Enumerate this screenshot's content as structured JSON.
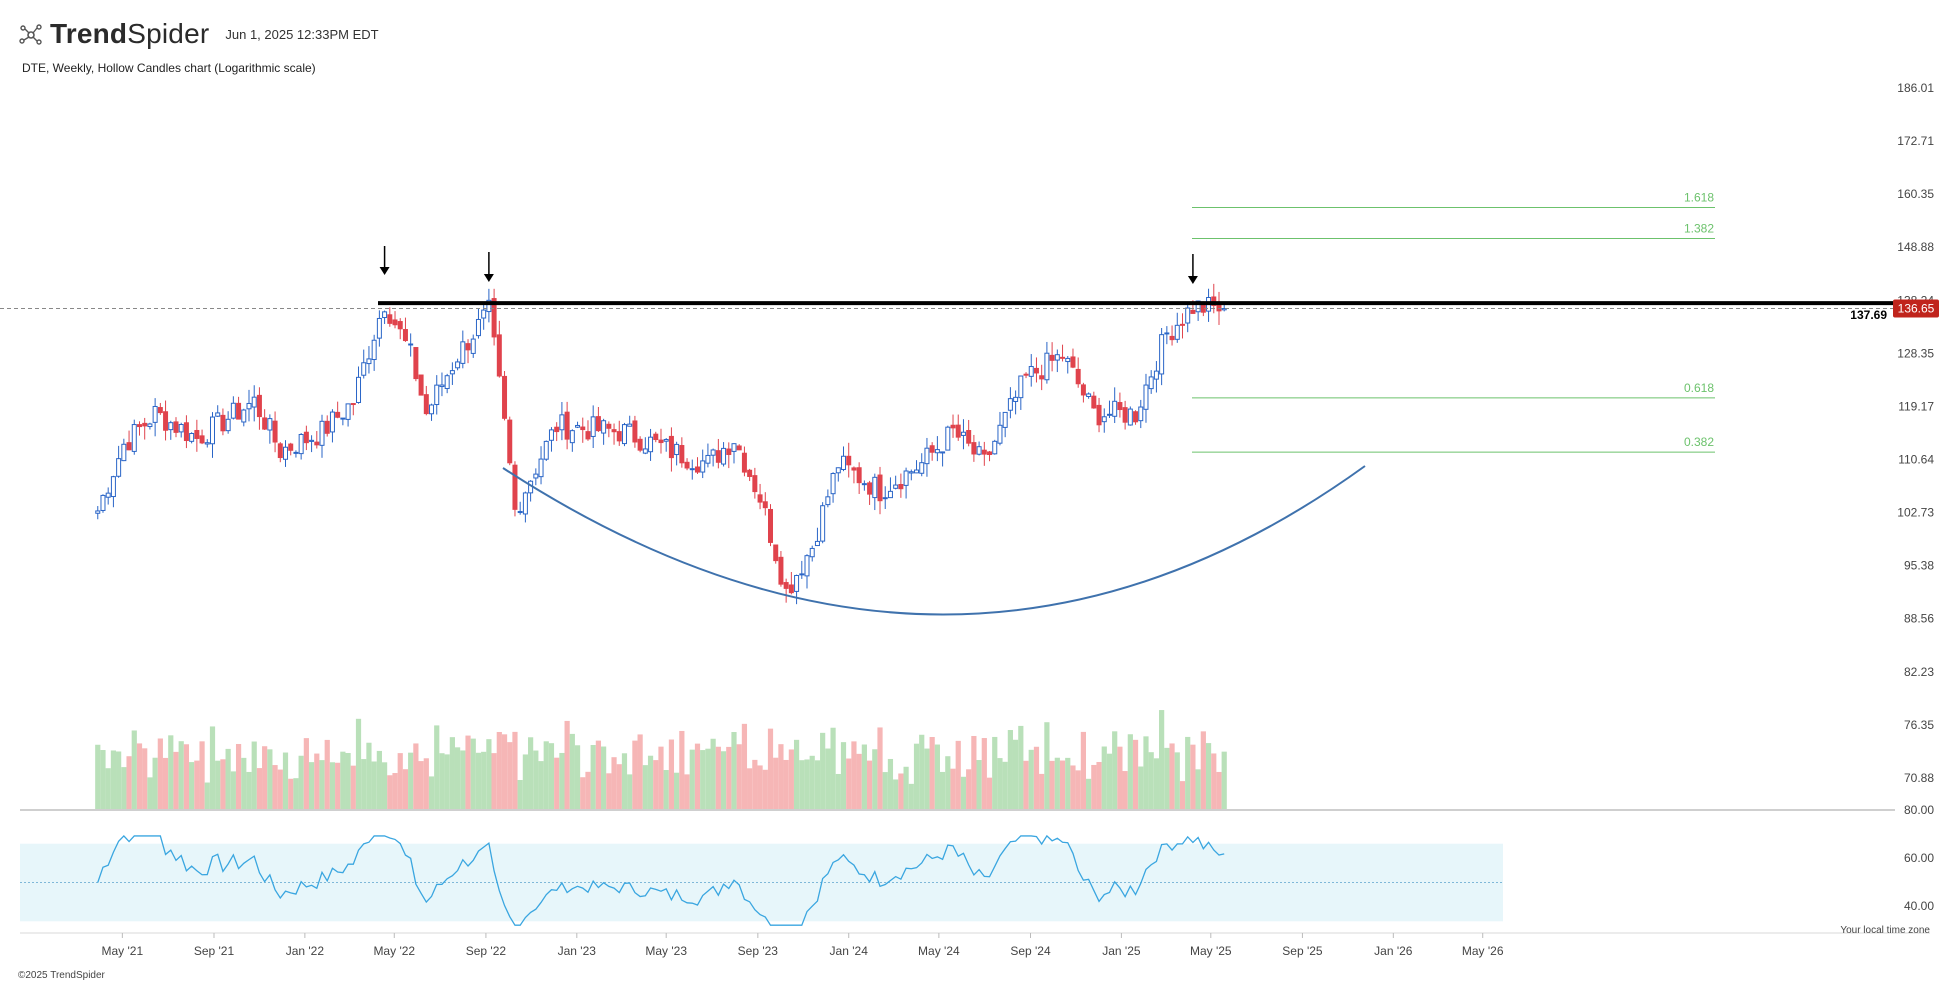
{
  "brand": {
    "name_bold": "Trend",
    "name_light": "Spider",
    "icon": "spider-logo-icon"
  },
  "timestamp": "Jun 1, 2025 12:33PM EDT",
  "subtitle": "DTE, Weekly, Hollow Candles chart (Logarithmic scale)",
  "footer": "©2025 TrendSpider",
  "timezone_note": "Your local time zone",
  "colors": {
    "up": "#2a65c7",
    "down": "#e0434c",
    "vol_up": "#b9e0b9",
    "vol_down": "#f6b6b6",
    "fib": "#6cc26c",
    "arc": "#3f72ad",
    "rsi": "#3aa6e0",
    "rsi_band": "#e7f6fa",
    "price_tag": "#c0241c"
  },
  "chart_data": {
    "type": "candlestick",
    "symbol": "DTE",
    "timeframe": "Weekly",
    "scale": "log",
    "price_axis_ticks": [
      186.01,
      172.71,
      160.35,
      148.88,
      138.24,
      128.35,
      119.17,
      110.64,
      102.73,
      95.38,
      88.56,
      82.23,
      76.35,
      70.88
    ],
    "x_axis_ticks": [
      "May '21",
      "Sep '21",
      "Jan '22",
      "May '22",
      "Sep '22",
      "Jan '23",
      "May '23",
      "Sep '23",
      "Jan '24",
      "May '24",
      "Sep '24",
      "Jan '25",
      "May '25",
      "Sep '25",
      "Jan '26",
      "May '26"
    ],
    "ylim": [
      70.88,
      186.01
    ],
    "current_price": 136.65,
    "resistance_level": 137.69,
    "resistance_label": "137.69",
    "fib_levels": [
      {
        "label": "1.618",
        "value": 157.4
      },
      {
        "label": "1.382",
        "value": 150.7
      },
      {
        "label": "0.618",
        "value": 120.6
      },
      {
        "label": "0.382",
        "value": 111.8
      }
    ],
    "arrows": [
      "Apr '22",
      "Sep '22",
      "Apr '25"
    ],
    "price_path": [
      [
        "2021-03-29",
        103
      ],
      [
        "2021-05-03",
        113
      ],
      [
        "2021-06-14",
        118
      ],
      [
        "2021-08-09",
        114
      ],
      [
        "2021-10-25",
        120
      ],
      [
        "2021-11-29",
        112
      ],
      [
        "2022-01-24",
        115
      ],
      [
        "2022-03-07",
        120
      ],
      [
        "2022-04-18",
        138
      ],
      [
        "2022-05-23",
        128
      ],
      [
        "2022-06-13",
        118
      ],
      [
        "2022-07-25",
        128
      ],
      [
        "2022-09-05",
        136
      ],
      [
        "2022-10-10",
        103
      ],
      [
        "2022-12-05",
        116
      ],
      [
        "2023-03-06",
        115
      ],
      [
        "2023-05-08",
        112
      ],
      [
        "2023-06-26",
        110
      ],
      [
        "2023-07-31",
        114
      ],
      [
        "2023-09-04",
        105
      ],
      [
        "2023-10-09",
        92
      ],
      [
        "2023-11-13",
        98
      ],
      [
        "2023-12-18",
        110
      ],
      [
        "2024-02-12",
        106
      ],
      [
        "2024-04-08",
        110
      ],
      [
        "2024-05-20",
        115
      ],
      [
        "2024-07-01",
        110
      ],
      [
        "2024-08-26",
        124
      ],
      [
        "2024-10-14",
        128
      ],
      [
        "2024-11-25",
        118
      ],
      [
        "2025-01-20",
        118
      ],
      [
        "2025-03-03",
        132
      ],
      [
        "2025-04-07",
        137
      ],
      [
        "2025-05-19",
        136.65
      ]
    ],
    "rsi": {
      "ticks": [
        80.0,
        60.0,
        40.0
      ],
      "tick_labels": [
        "80.00",
        "60.00",
        "40.00"
      ],
      "band": [
        30,
        70
      ],
      "midline": 50
    },
    "volume": {
      "relative_bars": "shown, colored by candle direction"
    }
  }
}
